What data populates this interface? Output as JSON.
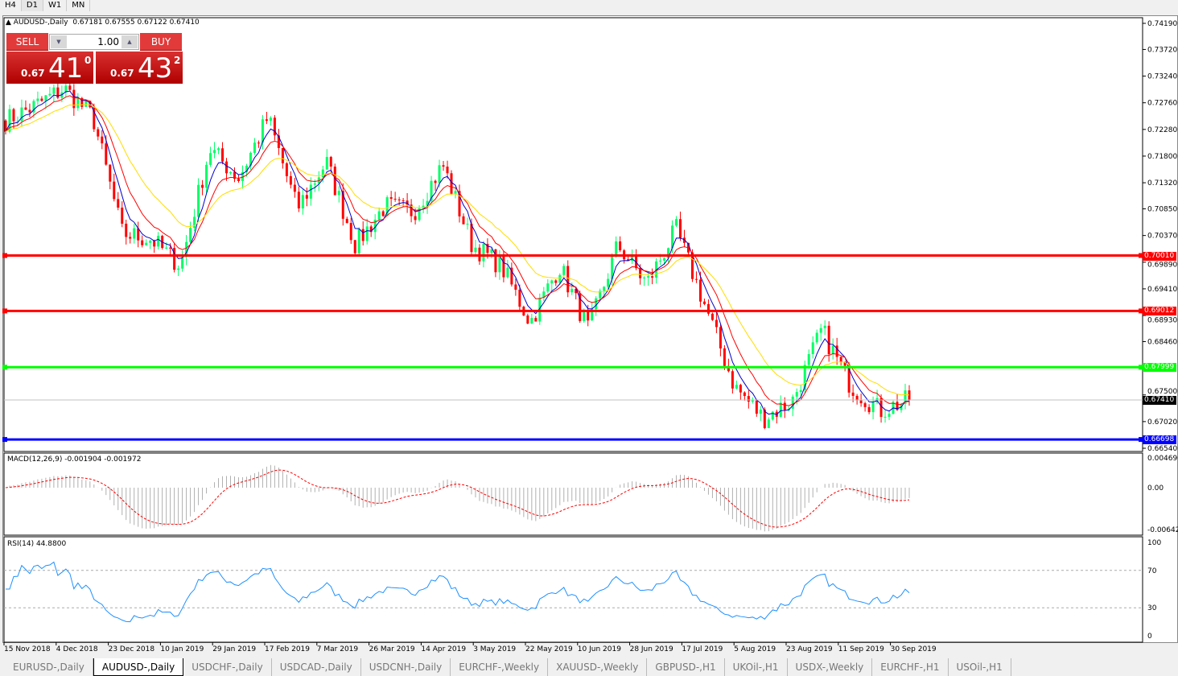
{
  "timeframes": [
    "H4",
    "D1",
    "W1",
    "MN"
  ],
  "active_timeframe": "D1",
  "chart": {
    "title": "AUDUSD-,Daily",
    "ohlc": "0.67181 0.67555 0.67122 0.67410",
    "trade_panel": {
      "sell_label": "SELL",
      "buy_label": "BUY",
      "lot": "1.00",
      "sell": {
        "prefix": "0.67",
        "big": "41",
        "sup": "0"
      },
      "buy": {
        "prefix": "0.67",
        "big": "43",
        "sup": "2"
      }
    },
    "price_axis": [
      "0.74190",
      "0.73720",
      "0.73240",
      "0.72760",
      "0.72280",
      "0.71800",
      "0.71320",
      "0.70850",
      "0.70370",
      "0.69890",
      "0.69410",
      "0.68930",
      "0.68460",
      "0.67500",
      "0.67020",
      "0.66540"
    ],
    "levels": [
      {
        "price": 0.7001,
        "label": "0.70010",
        "color": "#ff0000"
      },
      {
        "price": 0.69012,
        "label": "0.69012",
        "color": "#ff0000"
      },
      {
        "price": 0.67999,
        "label": "0.67999",
        "color": "#00ff00"
      },
      {
        "price": 0.66698,
        "label": "0.66698",
        "color": "#0000ff"
      }
    ],
    "current_price": {
      "price": 0.6741,
      "label": "0.67410"
    },
    "colors": {
      "bull": "#00ff66",
      "bear": "#ff0000",
      "ma_fast": "#0000cc",
      "ma_mid": "#ff0000",
      "ma_slow": "#ffdd00"
    },
    "date_axis": [
      "15 Nov 2018",
      "4 Dec 2018",
      "23 Dec 2018",
      "10 Jan 2019",
      "29 Jan 2019",
      "17 Feb 2019",
      "7 Mar 2019",
      "26 Mar 2019",
      "14 Apr 2019",
      "3 May 2019",
      "22 May 2019",
      "10 Jun 2019",
      "28 Jun 2019",
      "17 Jul 2019",
      "5 Aug 2019",
      "23 Aug 2019",
      "11 Sep 2019",
      "30 Sep 2019"
    ],
    "close_path": [
      0.7244,
      0.727,
      0.7302,
      0.725,
      0.7041,
      0.703,
      0.6983,
      0.7193,
      0.714,
      0.725,
      0.7085,
      0.717,
      0.702,
      0.709,
      0.708,
      0.7164,
      0.702,
      0.6983,
      0.6881,
      0.6983,
      0.6867,
      0.702,
      0.695,
      0.7048,
      0.691,
      0.6766,
      0.6708,
      0.674,
      0.6867,
      0.6766,
      0.6722,
      0.6741
    ]
  },
  "macd": {
    "label": "MACD(12,26,9) -0.001904 -0.001972",
    "axis": [
      "0.004696",
      "0.00",
      "-0.006427"
    ]
  },
  "rsi": {
    "label": "RSI(14) 44.8800",
    "axis": [
      "100",
      "70",
      "30",
      "0"
    ]
  },
  "tabs": [
    "EURUSD-,Daily",
    "AUDUSD-,Daily",
    "USDCHF-,Daily",
    "USDCAD-,Daily",
    "USDCNH-,Daily",
    "EURCHF-,Weekly",
    "XAUUSD-,Weekly",
    "GBPUSD-,H1",
    "UKOil-,H1",
    "USDX-,Weekly",
    "EURCHF-,H1",
    "USOil-,H1"
  ],
  "active_tab": "AUDUSD-,Daily"
}
